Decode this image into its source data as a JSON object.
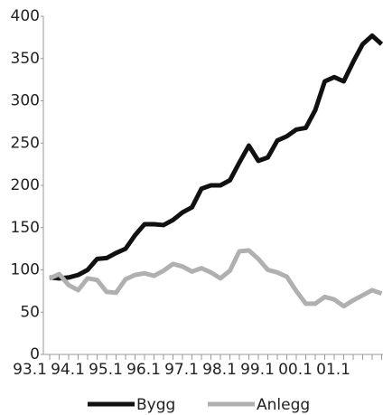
{
  "chart_data": {
    "type": "line",
    "categories": [
      "93.1",
      null,
      null,
      null,
      "94.1",
      null,
      null,
      null,
      "95.1",
      null,
      null,
      null,
      "96.1",
      null,
      null,
      null,
      "97.1",
      null,
      null,
      null,
      "98.1",
      null,
      null,
      null,
      "99.1",
      null,
      null,
      null,
      "00.1",
      null,
      null,
      null,
      "01.1",
      null,
      null,
      null
    ],
    "series": [
      {
        "name": "Bygg",
        "color": "#111111",
        "values": [
          91,
          90,
          91,
          94,
          100,
          113,
          114,
          120,
          125,
          141,
          154,
          154,
          153,
          159,
          168,
          174,
          196,
          200,
          200,
          206,
          227,
          247,
          229,
          233,
          253,
          258,
          266,
          268,
          289,
          323,
          328,
          323,
          346,
          367,
          377,
          367
        ]
      },
      {
        "name": "Anlegg",
        "color": "#b0b0b0",
        "values": [
          90,
          95,
          82,
          76,
          90,
          88,
          74,
          73,
          89,
          94,
          96,
          93,
          99,
          107,
          104,
          98,
          102,
          97,
          90,
          99,
          122,
          123,
          113,
          100,
          97,
          92,
          75,
          60,
          60,
          68,
          65,
          57,
          64,
          70,
          76,
          72
        ]
      }
    ],
    "ylim": [
      0,
      400
    ],
    "yticks": [
      0,
      50,
      100,
      150,
      200,
      250,
      300,
      350,
      400
    ],
    "grid": false,
    "legend": "bottom"
  }
}
